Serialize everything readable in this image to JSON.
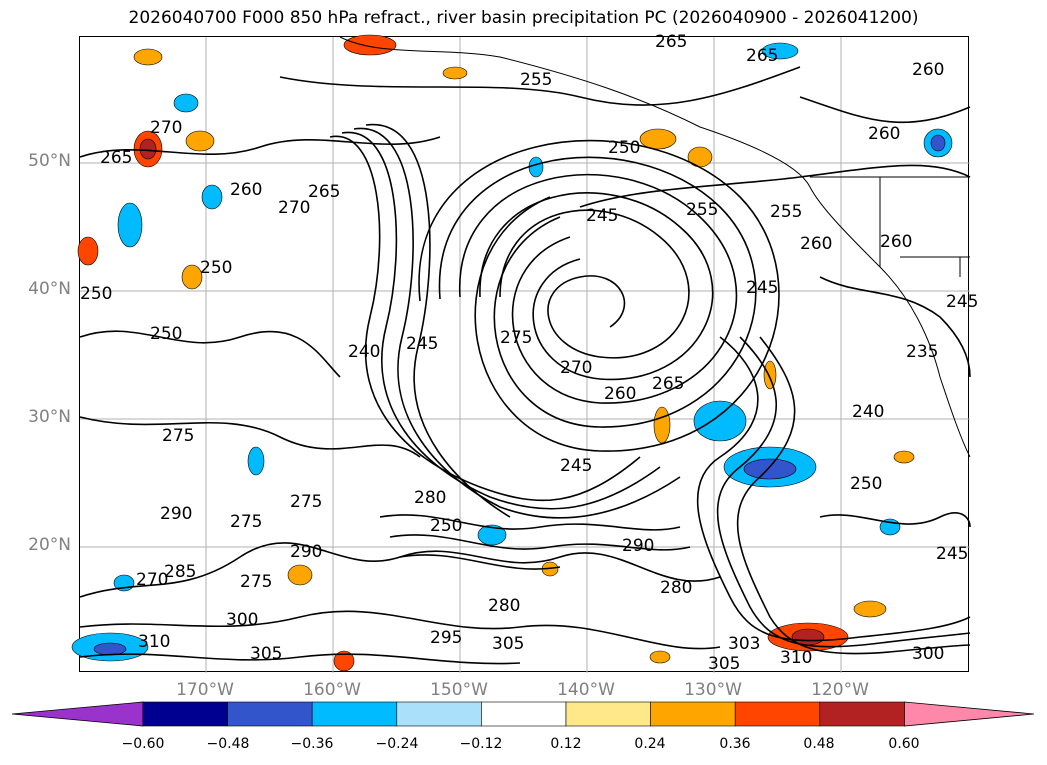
{
  "title": "2026040700 F000 850 hPa refract., river basin precipitation PC (2026040900 - 2026041200)",
  "map": {
    "lat_labels": [
      "50°N",
      "40°N",
      "30°N",
      "20°N"
    ],
    "lon_labels": [
      "170°W",
      "160°W",
      "150°W",
      "140°W",
      "130°W",
      "120°W"
    ],
    "contour_labels": [
      "265",
      "255",
      "260",
      "265",
      "260",
      "270",
      "265",
      "260",
      "250",
      "260",
      "270",
      "265",
      "245",
      "255",
      "250",
      "255",
      "245",
      "250",
      "260",
      "250",
      "275",
      "275",
      "270",
      "240",
      "245",
      "260",
      "245",
      "235",
      "275",
      "250",
      "240",
      "245",
      "250",
      "280",
      "290",
      "285",
      "275",
      "280",
      "290",
      "270",
      "275",
      "290",
      "280",
      "300",
      "295",
      "305",
      "310",
      "305",
      "305",
      "303",
      "310",
      "300",
      "245",
      "265"
    ]
  },
  "colorbar": {
    "ticks": [
      "−0.60",
      "−0.48",
      "−0.36",
      "−0.24",
      "−0.12",
      "0.12",
      "0.24",
      "0.36",
      "0.48",
      "0.60"
    ],
    "colors": [
      "#9933cc",
      "#000090",
      "#3355cc",
      "#00bbff",
      "#aae0fa",
      "#ffffff",
      "#ffe88a",
      "#ffa500",
      "#ff4500",
      "#b22222",
      "#ff88aa"
    ]
  }
}
